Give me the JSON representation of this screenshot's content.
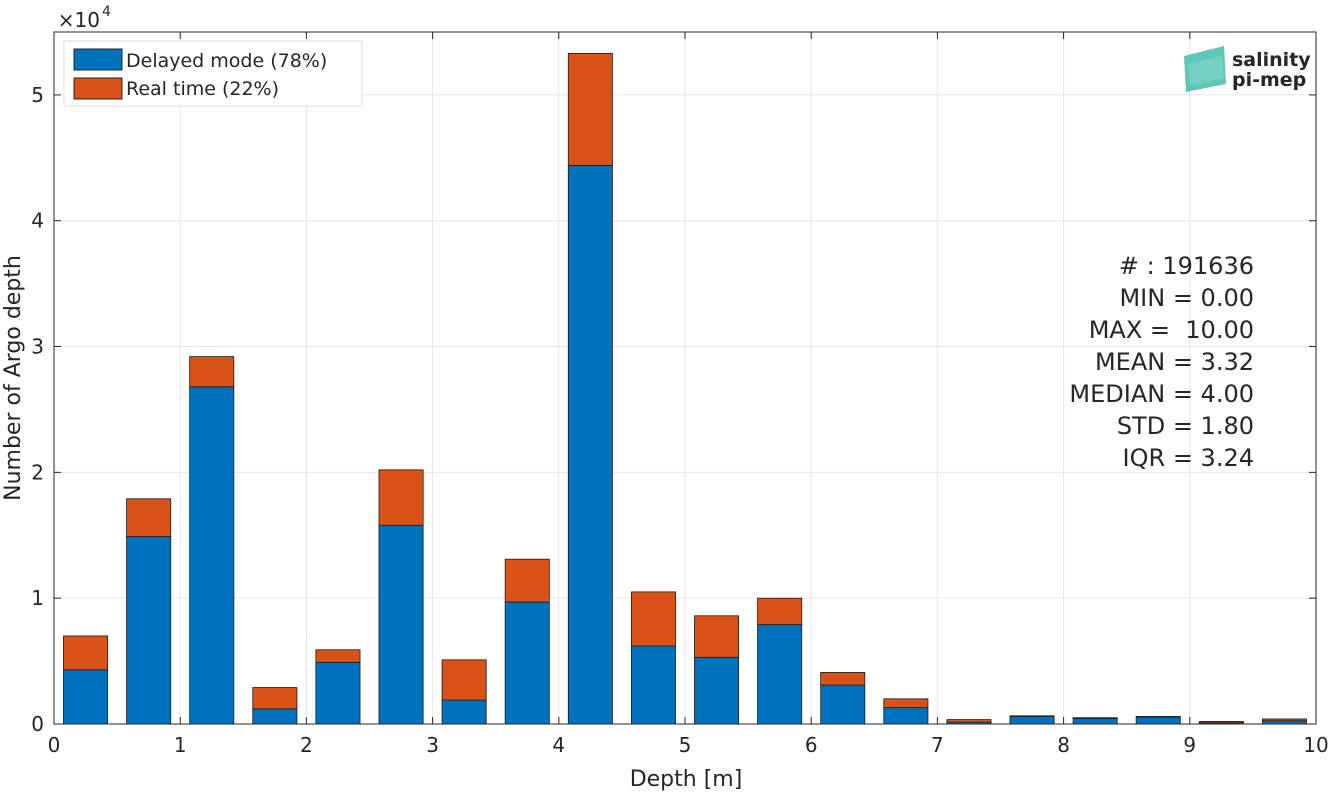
{
  "chart_data": {
    "type": "bar",
    "stacked": true,
    "xlabel": "Depth [m]",
    "ylabel": "Number of Argo depth",
    "xlim": [
      0,
      10
    ],
    "ylim": [
      0,
      55000
    ],
    "y_exponent_label": "×10",
    "y_exponent_power": "4",
    "xticks": [
      "0",
      "1",
      "2",
      "3",
      "4",
      "5",
      "6",
      "7",
      "8",
      "9",
      "10"
    ],
    "yticks": [
      "0",
      "1",
      "2",
      "3",
      "4",
      "5"
    ],
    "grid": true,
    "legend_position": "top-left",
    "x": [
      0.25,
      0.75,
      1.25,
      1.75,
      2.25,
      2.75,
      3.25,
      3.75,
      4.25,
      4.75,
      5.25,
      5.75,
      6.25,
      6.75,
      7.25,
      7.75,
      8.25,
      8.75,
      9.25,
      9.75
    ],
    "series": [
      {
        "name": "Delayed mode (78%)",
        "color": "#0072bd",
        "values": [
          4300,
          14900,
          26800,
          1200,
          4900,
          15800,
          1900,
          9700,
          44400,
          6200,
          5300,
          7900,
          3100,
          1300,
          150,
          600,
          450,
          550,
          100,
          250
        ]
      },
      {
        "name": "Real time (22%)",
        "color": "#d95319",
        "values": [
          2700,
          3000,
          2400,
          1700,
          1000,
          4400,
          3200,
          3400,
          8900,
          4300,
          3300,
          2100,
          1000,
          700,
          200,
          50,
          50,
          50,
          100,
          150
        ]
      }
    ],
    "stats": [
      "# : 191636",
      "MIN = 0.00",
      "MAX =  10.00",
      "MEAN = 3.32",
      "MEDIAN = 4.00",
      "STD = 1.80",
      "IQR = 3.24"
    ],
    "logo": {
      "line1": "salinity",
      "line2": "pi-mep",
      "color1": "#2bb3a0",
      "color2": "#1e5d6b"
    }
  }
}
